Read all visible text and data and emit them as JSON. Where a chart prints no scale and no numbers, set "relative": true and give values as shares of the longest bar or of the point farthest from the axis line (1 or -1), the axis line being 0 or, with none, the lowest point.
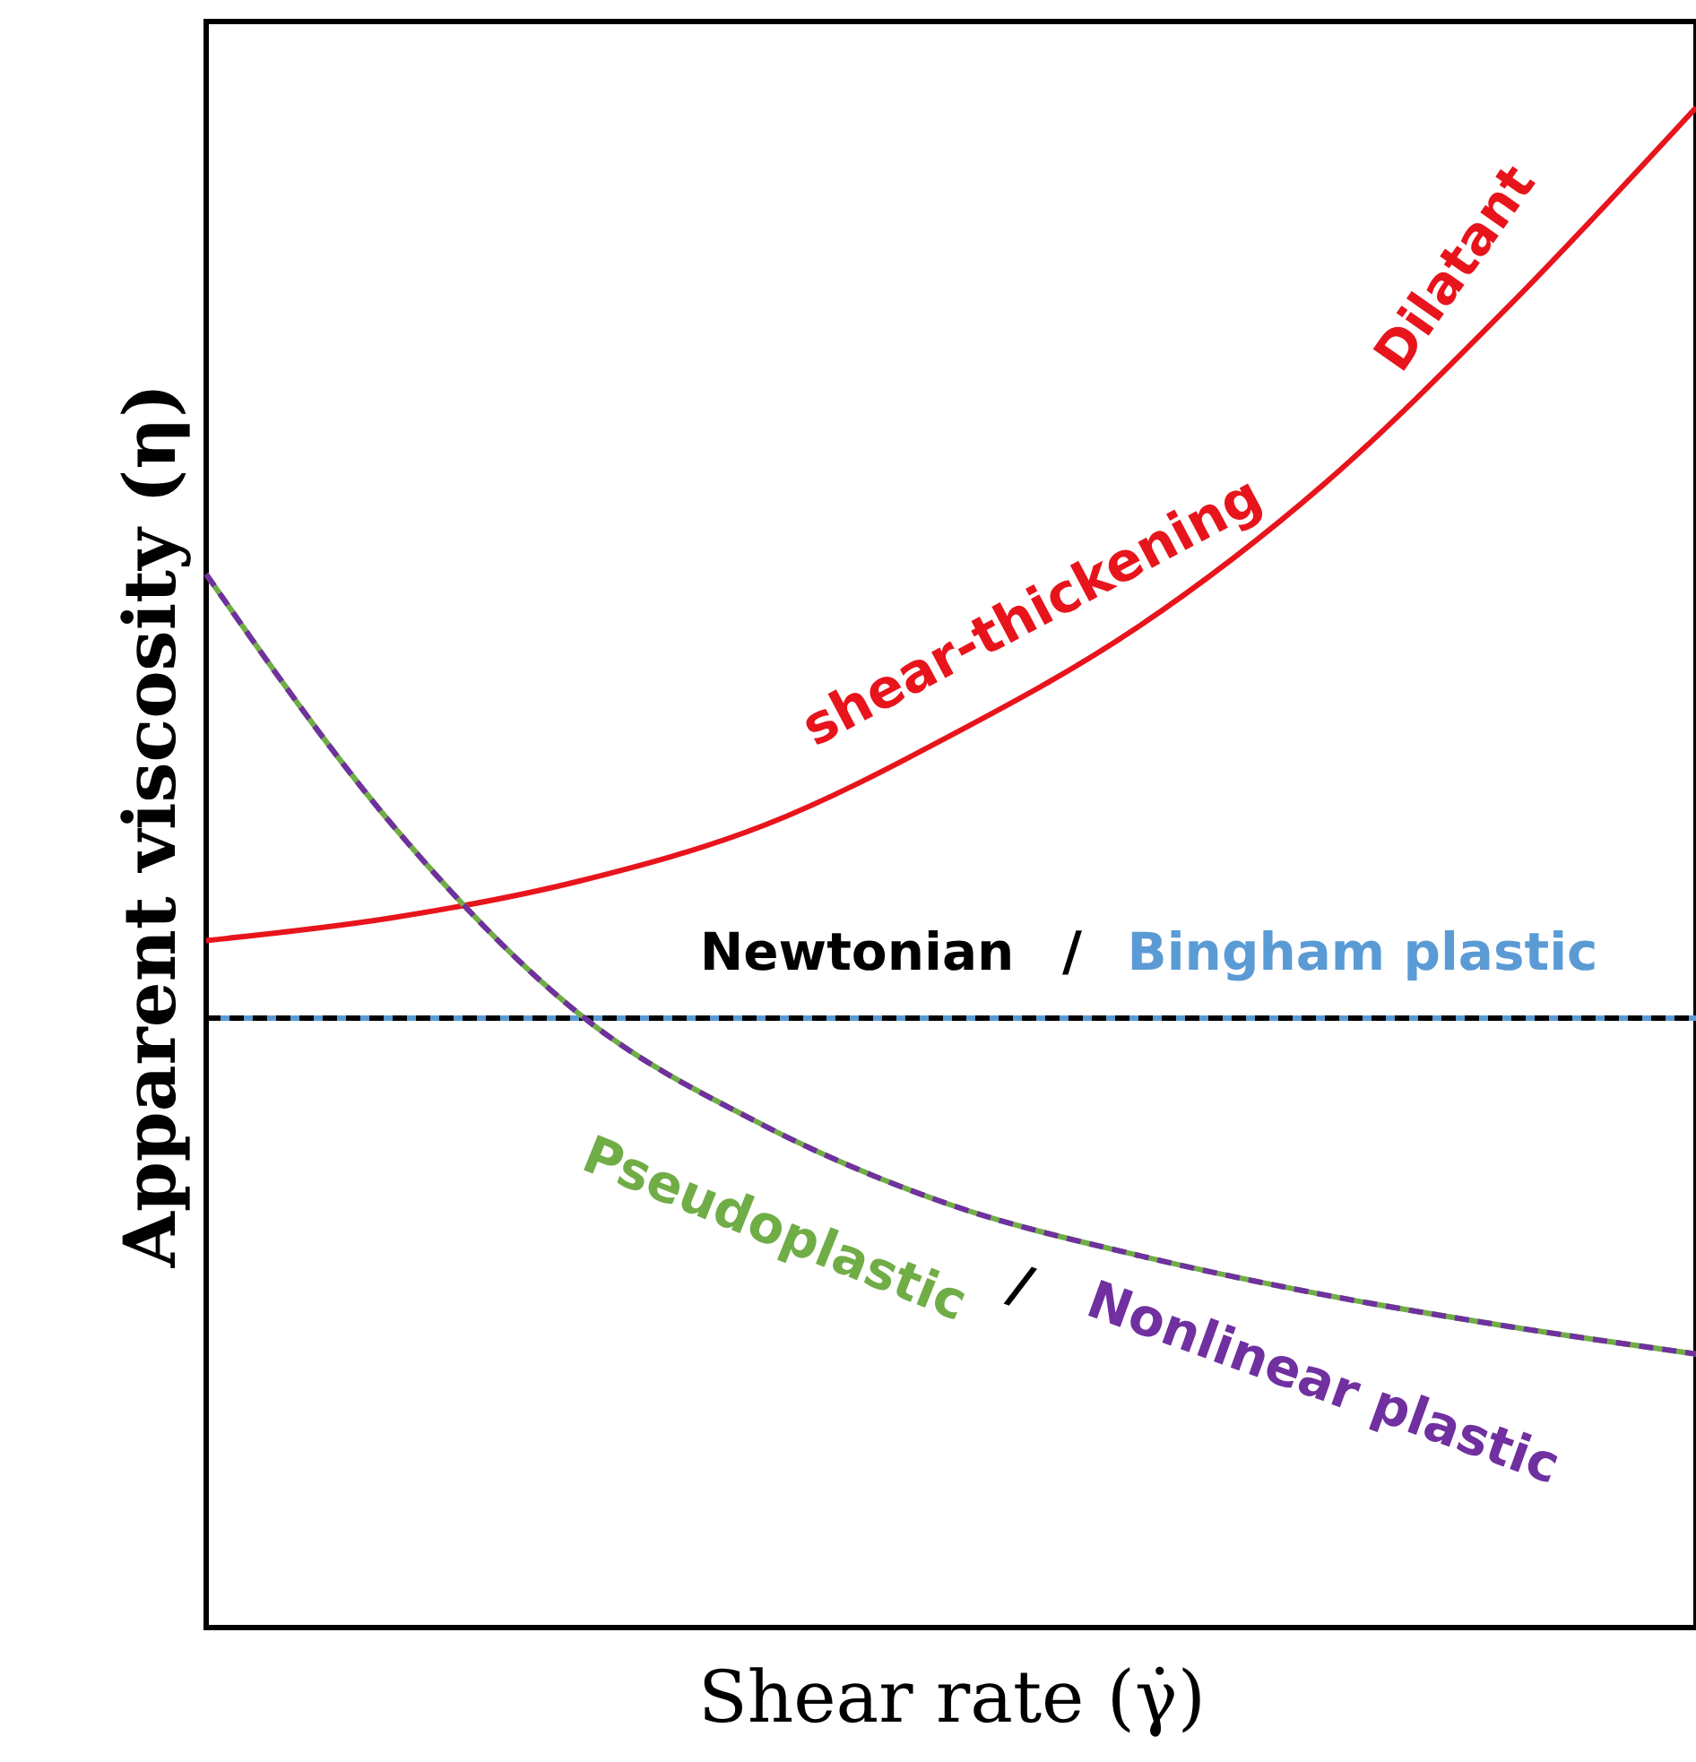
{
  "chart_data": {
    "type": "line",
    "relative": true,
    "xlabel": "Shear rate (γ̇)",
    "ylabel": "Apparent viscosity (η)",
    "categories": [
      null,
      null,
      null,
      null,
      null,
      null,
      null,
      null,
      null
    ],
    "series": [
      {
        "name": "Dilatant",
        "color": "#e8141c",
        "line_style": "solid",
        "values": [
          0.452,
          0.467,
          0.491,
          0.528,
          0.587,
          0.658,
          0.752,
          0.87,
          1.0
        ]
      },
      {
        "name": "Bingham plastic",
        "color": "#5b9bd5",
        "line_style": "solid",
        "values": [
          0.401,
          0.401,
          0.401,
          0.401,
          0.401,
          0.401,
          0.401,
          0.401,
          0.401
        ]
      },
      {
        "name": "Newtonian",
        "color": "#000000",
        "line_style": "dashed",
        "values": [
          0.401,
          0.401,
          0.401,
          0.401,
          0.401,
          0.401,
          0.401,
          0.401,
          0.401
        ]
      },
      {
        "name": "Pseudoplastic",
        "color": "#70ad47",
        "line_style": "solid",
        "values": [
          0.693,
          0.528,
          0.404,
          0.33,
          0.278,
          0.245,
          0.219,
          0.198,
          0.18
        ]
      },
      {
        "name": "Nonlinear plastic",
        "color": "#7030a0",
        "line_style": "dashed",
        "values": [
          0.693,
          0.528,
          0.404,
          0.33,
          0.278,
          0.245,
          0.219,
          0.198,
          0.18
        ]
      }
    ],
    "annotations": [
      "shear-thickening",
      "/",
      "/"
    ],
    "grid": false,
    "tick_labels": false
  }
}
